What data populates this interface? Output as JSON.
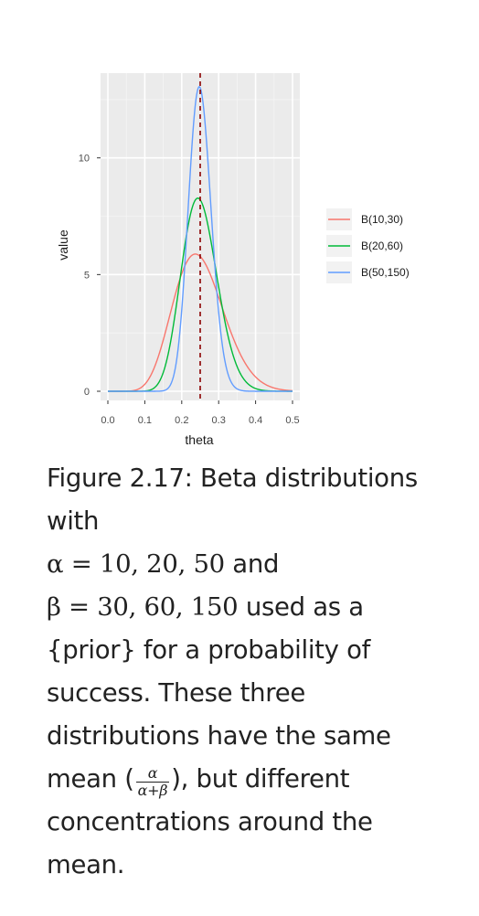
{
  "chart_data": {
    "type": "line",
    "xlabel": "theta",
    "ylabel": "value",
    "xlim": [
      0.0,
      0.5
    ],
    "ylim": [
      0,
      13.2
    ],
    "x_ticks": [
      "0.0",
      "0.1",
      "0.2",
      "0.3",
      "0.4",
      "0.5"
    ],
    "x_tick_values": [
      0.0,
      0.1,
      0.2,
      0.3,
      0.4,
      0.5
    ],
    "y_ticks": [
      "0",
      "5",
      "10"
    ],
    "y_tick_values": [
      0,
      5,
      10
    ],
    "grid": true,
    "legend_position": "right",
    "vline": {
      "x": 0.25,
      "style": "dashed",
      "color": "#8b0000"
    },
    "series": [
      {
        "name": "B(10,30)",
        "alpha": 10,
        "beta": 30,
        "color": "#f8766d",
        "peak_value": 5.8
      },
      {
        "name": "B(20,60)",
        "alpha": 20,
        "beta": 60,
        "color": "#00ba38",
        "peak_value": 8.3
      },
      {
        "name": "B(50,150)",
        "alpha": 50,
        "beta": 150,
        "color": "#619cff",
        "peak_value": 13.1
      }
    ]
  },
  "caption": {
    "p1": "Figure 2.17: Beta distributions with",
    "alpha_eq": "α = 10, 20, 50",
    "p2": " and",
    "beta_eq": "β = 30, 60, 150",
    "p3": " used as a {prior} for a probability of success. These three distributions have the same mean (",
    "frac_num": "α",
    "frac_den": "α+β",
    "p4": "), but different concentrations around the mean."
  }
}
